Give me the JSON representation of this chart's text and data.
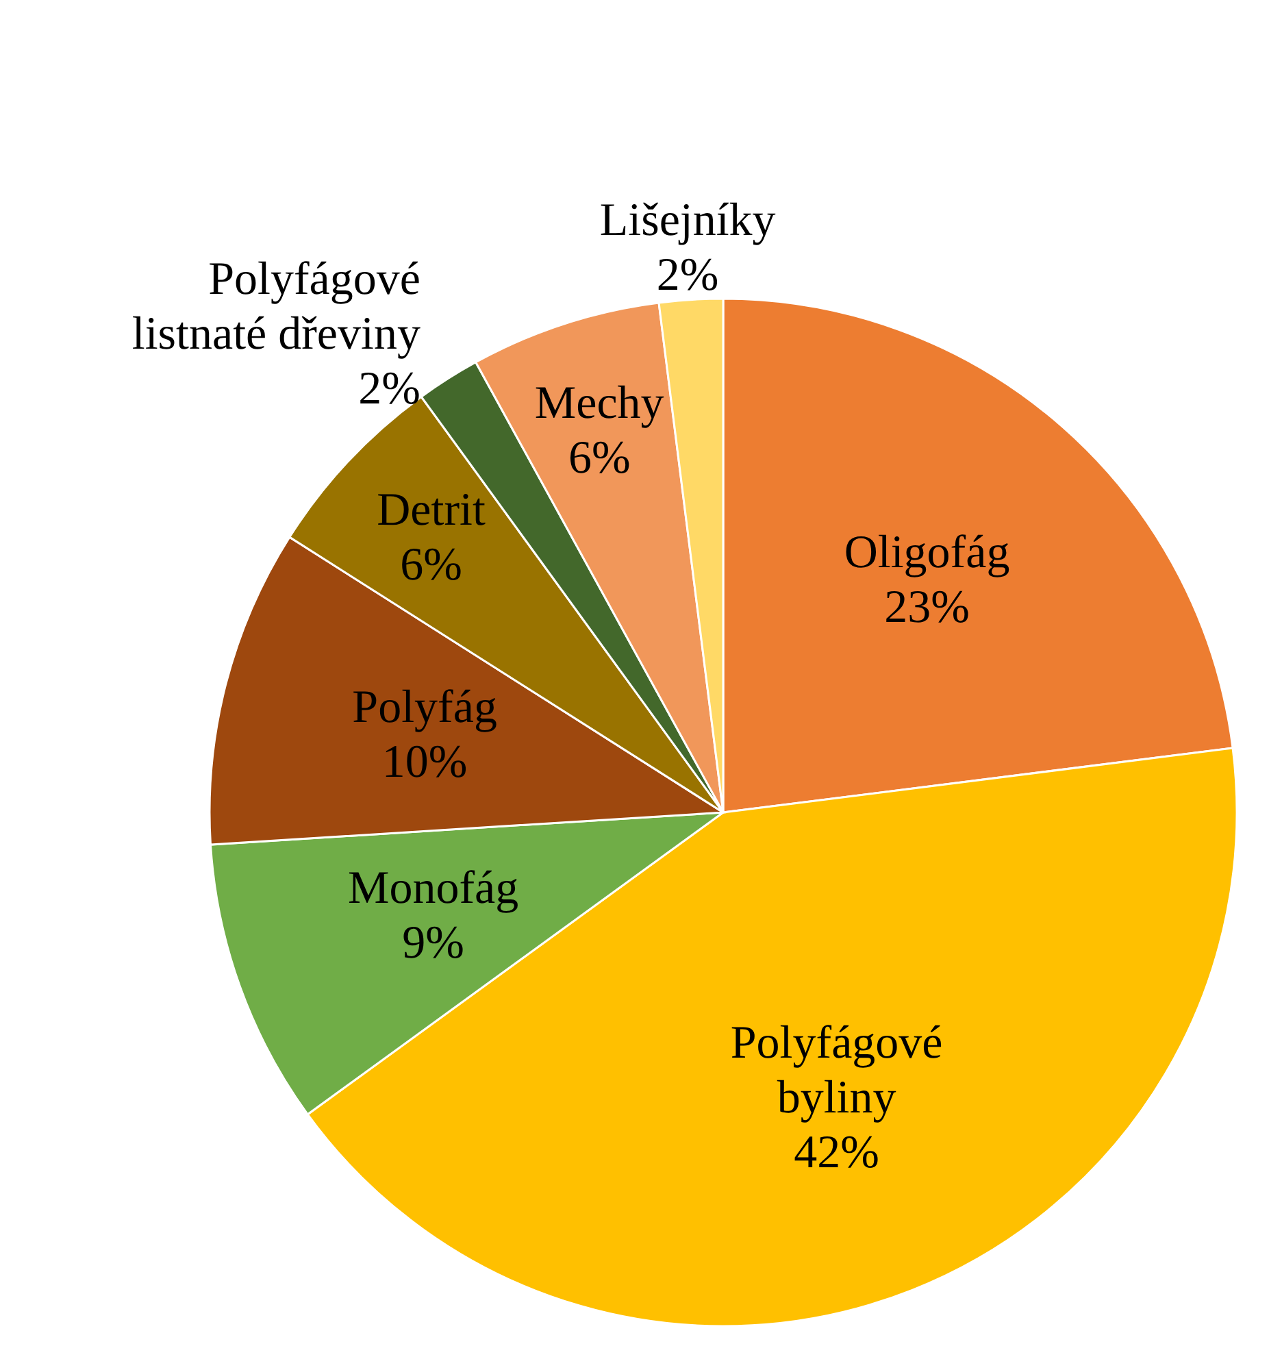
{
  "chart_data": {
    "type": "pie",
    "categories": [
      "Oligofág",
      "Polyfágové byliny",
      "Monofág",
      "Polyfág",
      "Detrit",
      "Polyfágové listnaté dřeviny",
      "Mechy",
      "Lišejníky"
    ],
    "values": [
      23,
      42,
      9,
      10,
      6,
      2,
      6,
      2
    ],
    "colors": [
      "#ed7d31",
      "#ffc000",
      "#70ad47",
      "#9e480e",
      "#997300",
      "#43682b",
      "#f1975a",
      "#ffd966"
    ],
    "value_labels": [
      "23%",
      "42%",
      "9%",
      "10%",
      "6%",
      "2%",
      "6%",
      "2%"
    ]
  }
}
